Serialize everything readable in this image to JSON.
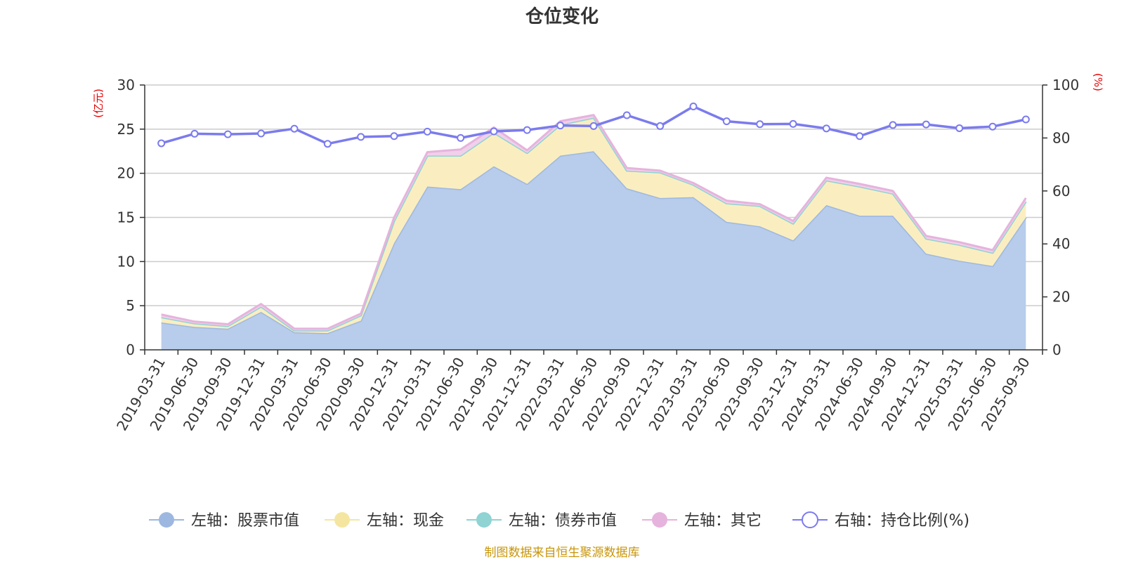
{
  "chart_data": {
    "type": "area",
    "title": "仓位变化",
    "left_unit": "(亿元)",
    "right_unit": "(%)",
    "categories": [
      "2019-03-31",
      "2019-06-30",
      "2019-09-30",
      "2019-12-31",
      "2020-03-31",
      "2020-06-30",
      "2020-09-30",
      "2020-12-31",
      "2021-03-31",
      "2021-06-30",
      "2021-09-30",
      "2021-12-31",
      "2022-03-31",
      "2022-06-30",
      "2022-09-30",
      "2022-12-31",
      "2023-03-31",
      "2023-06-30",
      "2023-09-30",
      "2023-12-31",
      "2024-03-31",
      "2024-06-30",
      "2024-09-30",
      "2024-12-31",
      "2025-03-31",
      "2025-06-30",
      "2025-09-30"
    ],
    "left_axis": {
      "min": 0,
      "max": 30,
      "ticks": [
        "0",
        "5",
        "10",
        "15",
        "20",
        "25",
        "30"
      ]
    },
    "right_axis": {
      "min": 0,
      "max": 100,
      "ticks": [
        "0",
        "20",
        "40",
        "60",
        "80",
        "100"
      ]
    },
    "series": [
      {
        "name": "左轴：股票市值",
        "axis": "left",
        "stack": true,
        "color": "#9db8e0",
        "fill": "#b8cceb",
        "values": [
          3.1,
          2.6,
          2.4,
          4.3,
          2.0,
          1.9,
          3.3,
          12.1,
          18.5,
          18.2,
          20.8,
          18.8,
          22.0,
          22.5,
          18.3,
          17.2,
          17.3,
          14.5,
          14.0,
          12.4,
          16.4,
          15.2,
          15.2,
          10.9,
          10.1,
          9.5,
          15.0
        ]
      },
      {
        "name": "左轴：现金",
        "axis": "left",
        "stack": true,
        "color": "#f4e6a0",
        "fill": "#faeec0",
        "values": [
          0.6,
          0.4,
          0.3,
          0.6,
          0.2,
          0.3,
          0.6,
          2.5,
          3.5,
          3.8,
          3.8,
          3.5,
          3.5,
          3.8,
          2.0,
          2.9,
          1.4,
          2.1,
          2.3,
          1.9,
          2.8,
          3.3,
          2.5,
          1.7,
          1.8,
          1.5,
          1.8
        ]
      },
      {
        "name": "左轴：债券市值",
        "axis": "left",
        "stack": true,
        "color": "#8fd3d3",
        "fill": "#b9e6e6",
        "values": [
          0,
          0,
          0,
          0,
          0,
          0,
          0,
          0,
          0,
          0,
          0,
          0,
          0,
          0,
          0,
          0,
          0,
          0,
          0,
          0,
          0,
          0,
          0,
          0,
          0,
          0,
          0
        ]
      },
      {
        "name": "左轴：其它",
        "axis": "left",
        "stack": true,
        "color": "#e6b3dd",
        "fill": "#f0d0ea",
        "values": [
          0.3,
          0.2,
          0.2,
          0.3,
          0.2,
          0.2,
          0.2,
          0.4,
          0.4,
          0.7,
          0.6,
          0.3,
          0.4,
          0.3,
          0.3,
          0.2,
          0.2,
          0.3,
          0.2,
          0.3,
          0.3,
          0.3,
          0.3,
          0.3,
          0.3,
          0.3,
          0.4
        ]
      },
      {
        "name": "右轴：持仓比例(%)",
        "axis": "right",
        "stack": false,
        "color": "#7b7bee",
        "marker": "circle",
        "values": [
          78.0,
          81.6,
          81.4,
          81.7,
          83.5,
          77.8,
          80.4,
          80.7,
          82.4,
          80.0,
          82.5,
          83.0,
          84.7,
          84.5,
          88.6,
          84.5,
          91.9,
          86.3,
          85.2,
          85.3,
          83.6,
          80.7,
          84.9,
          85.1,
          83.7,
          84.3,
          87.0
        ]
      }
    ],
    "legend_position": "bottom",
    "grid": true
  },
  "source_note": "制图数据来自恒生聚源数据库"
}
